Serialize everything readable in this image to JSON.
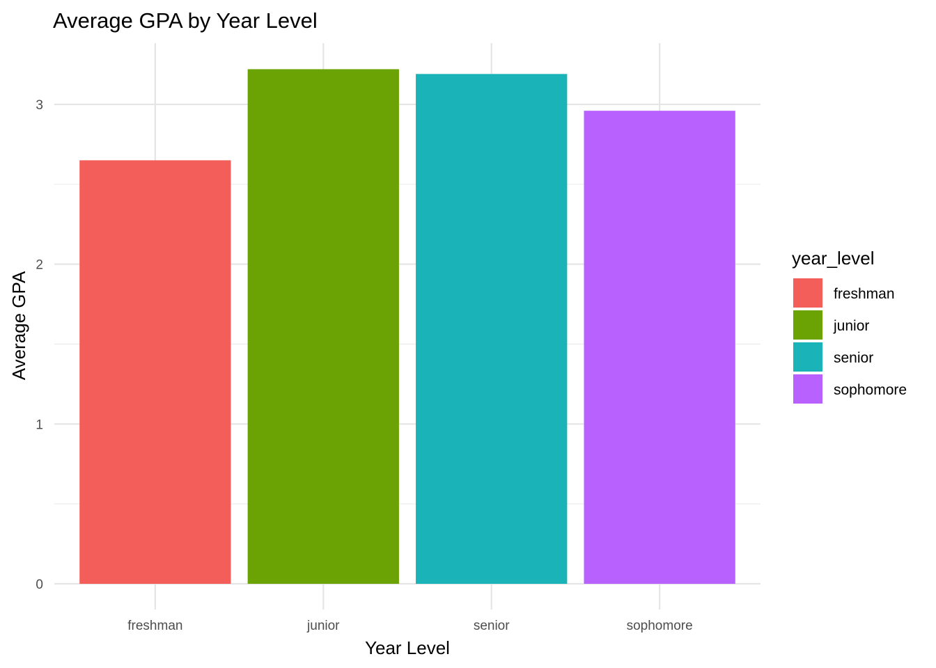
{
  "chart_data": {
    "type": "bar",
    "title": "Average GPA by Year Level",
    "xlabel": "Year Level",
    "ylabel": "Average GPA",
    "categories": [
      "freshman",
      "junior",
      "senior",
      "sophomore"
    ],
    "values": [
      2.65,
      3.22,
      3.19,
      2.96
    ],
    "colors": [
      "#F8766D",
      "#7CAE00",
      "#00BFC4",
      "#C77CFF"
    ],
    "bar_colors_rendered": [
      "#F35E5A",
      "#6BA304",
      "#19B3B8",
      "#B961FF"
    ],
    "ylim": [
      -0.161,
      3.383
    ],
    "yticks": [
      0,
      1,
      2,
      3
    ],
    "ytick_labels": [
      "0",
      "1",
      "2",
      "3"
    ],
    "grid": true,
    "legend": {
      "title": "year_level",
      "placement": "right",
      "entries": [
        "freshman",
        "junior",
        "senior",
        "sophomore"
      ]
    }
  }
}
